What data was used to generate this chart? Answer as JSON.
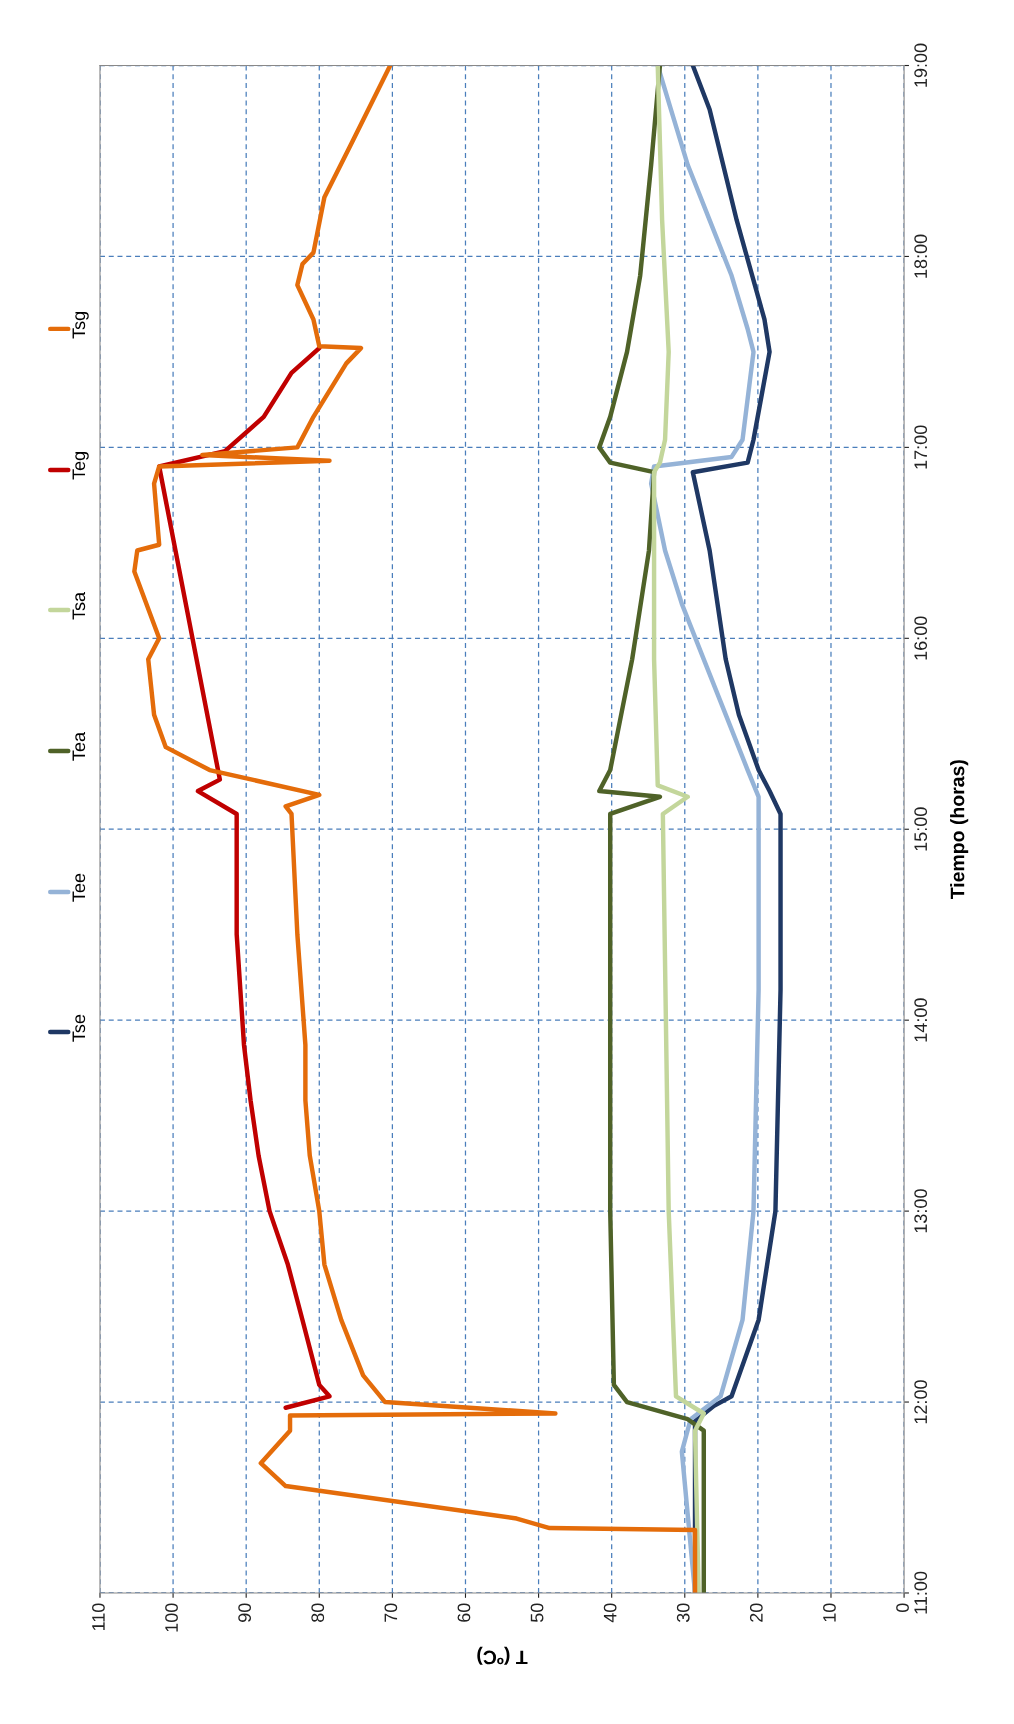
{
  "chart_data": {
    "type": "line",
    "xlabel": "T (ºC)",
    "ylabel": "Tiempo (horas)",
    "ylim": [
      11,
      19
    ],
    "yticks": [
      {
        "value": 11,
        "label": "11:00"
      },
      {
        "value": 12,
        "label": "12:00"
      },
      {
        "value": 13,
        "label": "13:00"
      },
      {
        "value": 14,
        "label": "14:00"
      },
      {
        "value": 15,
        "label": "15:00"
      },
      {
        "value": 16,
        "label": "16:00"
      },
      {
        "value": 17,
        "label": "17:00"
      },
      {
        "value": 18,
        "label": "18:00"
      },
      {
        "value": 19,
        "label": "19:00"
      }
    ],
    "xlim": [
      110,
      0
    ],
    "xticks": [
      0,
      10,
      20,
      30,
      40,
      50,
      60,
      70,
      80,
      90,
      100,
      110
    ],
    "grid": true,
    "legend": "left",
    "line_style": "solid",
    "marker": "none",
    "series": [
      {
        "name": "Tse",
        "color": "#1f3864",
        "values": [
          11.0,
          11.9,
          11.98,
          12.03,
          12.43,
          13.0,
          14.16,
          15.08,
          15.2,
          15.31,
          15.6,
          15.89,
          16.46,
          16.87,
          16.92,
          17.04,
          17.5,
          17.67,
          18.19,
          18.77,
          19.0
        ],
        "x": [
          28.6,
          28.6,
          26.0,
          23.6,
          19.9,
          17.6,
          16.9,
          16.9,
          18.4,
          19.9,
          22.6,
          24.4,
          26.6,
          28.9,
          21.4,
          20.6,
          18.4,
          19.1,
          22.9,
          26.6,
          28.9
        ]
      },
      {
        "name": "Tee",
        "color": "#95b3d7",
        "values": [
          11.0,
          11.74,
          11.91,
          12.03,
          12.43,
          13.0,
          14.16,
          15.08,
          15.17,
          15.31,
          15.6,
          15.89,
          16.18,
          16.46,
          16.81,
          16.9,
          16.95,
          17.04,
          17.5,
          17.62,
          17.9,
          18.19,
          18.48,
          18.77,
          19.0
        ],
        "x": [
          28.6,
          30.4,
          29.2,
          25.1,
          22.1,
          20.6,
          19.9,
          19.9,
          19.9,
          21.4,
          24.4,
          27.4,
          30.4,
          32.7,
          34.6,
          34.2,
          23.6,
          22.1,
          20.6,
          21.4,
          23.6,
          26.6,
          29.6,
          31.9,
          33.7
        ]
      },
      {
        "name": "Tea",
        "color": "#4f6228",
        "values": [
          11.0,
          11.85,
          11.91,
          12.0,
          12.09,
          13.0,
          14.16,
          15.08,
          15.17,
          15.2,
          15.31,
          15.6,
          15.89,
          16.46,
          16.87,
          16.92,
          17.0,
          17.16,
          17.5,
          17.9,
          18.48,
          19.0
        ],
        "x": [
          27.4,
          27.4,
          29.6,
          37.9,
          39.7,
          40.2,
          40.2,
          40.2,
          33.4,
          41.7,
          40.2,
          38.7,
          37.2,
          34.9,
          34.2,
          40.2,
          41.7,
          40.2,
          37.9,
          36.1,
          34.6,
          33.4
        ]
      },
      {
        "name": "Tsa",
        "color": "#c3d69b",
        "values": [
          11.0,
          11.85,
          11.94,
          12.03,
          13.0,
          15.08,
          15.17,
          15.23,
          15.89,
          16.87,
          16.92,
          17.04,
          17.5,
          18.19,
          19.0
        ],
        "x": [
          28.1,
          28.6,
          27.4,
          31.2,
          32.2,
          33.0,
          29.6,
          33.7,
          34.2,
          34.2,
          33.4,
          32.7,
          32.2,
          33.1,
          33.7
        ]
      },
      {
        "name": "Teg",
        "color": "#c00000",
        "values": [
          11.97,
          12.03,
          12.09,
          12.43,
          12.72,
          13.0,
          13.29,
          13.58,
          13.87,
          14.45,
          15.08,
          15.2,
          15.26,
          16.9,
          16.98,
          17.16,
          17.39,
          17.52
        ],
        "x": [
          84.6,
          78.6,
          80.0,
          82.3,
          84.3,
          86.8,
          88.3,
          89.4,
          90.3,
          91.3,
          91.3,
          96.6,
          93.6,
          101.9,
          92.9,
          87.6,
          83.8,
          80.0
        ]
      },
      {
        "name": "Tsg",
        "color": "#e46c0a",
        "values": [
          11.0,
          11.33,
          11.34,
          11.39,
          11.56,
          11.68,
          11.85,
          11.93,
          11.94,
          12.0,
          12.14,
          12.43,
          12.72,
          13.0,
          13.29,
          13.58,
          13.87,
          14.45,
          15.08,
          15.12,
          15.18,
          15.31,
          15.43,
          15.6,
          15.89,
          16.0,
          16.35,
          16.46,
          16.49,
          16.81,
          16.9,
          16.93,
          16.96,
          17.0,
          17.16,
          17.44,
          17.52,
          17.53,
          17.67,
          17.85,
          17.96,
          18.02,
          18.31,
          18.6,
          19.0
        ],
        "x": [
          28.6,
          28.6,
          48.5,
          53.0,
          84.6,
          88.0,
          84.0,
          84.0,
          47.7,
          71.0,
          74.0,
          77.0,
          79.3,
          80.0,
          81.3,
          81.9,
          81.9,
          83.0,
          83.8,
          84.6,
          80.0,
          95.0,
          101.0,
          102.6,
          103.4,
          101.9,
          105.3,
          104.9,
          101.9,
          102.6,
          101.9,
          78.6,
          96.0,
          83.0,
          80.8,
          76.3,
          74.3,
          80.0,
          80.8,
          83.0,
          82.3,
          80.8,
          79.3,
          75.5,
          70.3
        ]
      }
    ]
  }
}
